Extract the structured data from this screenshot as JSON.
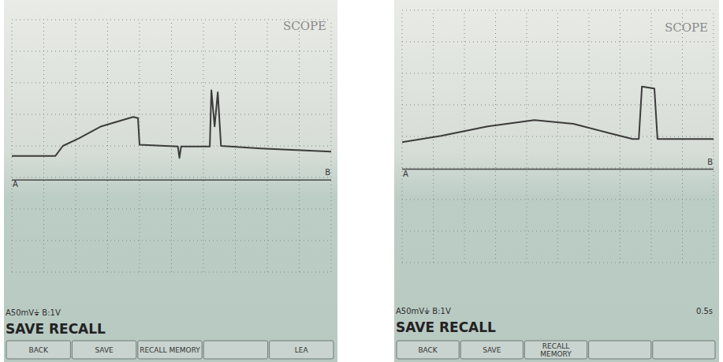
{
  "chart_data": [
    {
      "type": "line",
      "title": "SCOPE",
      "x": [
        0,
        1.36,
        1.6,
        2.1,
        2.8,
        3.8,
        3.95,
        4.0,
        5.2,
        5.25,
        5.3,
        6.2,
        6.25,
        6.35,
        6.45,
        6.55,
        7.8,
        10
      ],
      "series": [
        {
          "name": "A",
          "color": "#3b3b3b",
          "values": [
            34,
            34,
            50,
            62,
            81,
            96,
            94,
            52,
            49,
            31,
            49,
            49,
            138,
            81,
            135,
            50,
            46,
            41
          ]
        },
        {
          "name": "B",
          "color": "#4a4a4a",
          "values": [
            -4,
            -4,
            -4,
            -4,
            -4,
            -4,
            -4,
            -4,
            -4,
            -4,
            -4,
            -4,
            -4,
            -4,
            -4,
            -4,
            -4,
            -4
          ]
        }
      ],
      "xlim": [
        0,
        10
      ],
      "xticks": [
        0,
        1,
        2,
        3,
        4,
        5,
        6,
        7,
        8,
        9,
        10
      ],
      "ylim": [
        -150,
        250
      ],
      "yticks": [
        -150,
        -100,
        -50,
        0,
        50,
        100,
        150,
        200,
        250
      ],
      "grid": true,
      "tick_labels": false,
      "status": "A50mV⏚  B:1V",
      "menu_title": "SAVE RECALL",
      "buttons": [
        "BACK",
        "SAVE",
        "RECALL MEMORY",
        null,
        "LEA"
      ]
    },
    {
      "type": "line",
      "title": "SCOPE",
      "x": [
        0,
        1.25,
        2.75,
        4.25,
        5.5,
        6.75,
        7.4,
        7.6,
        7.7,
        8.1,
        8.2,
        10
      ],
      "series": [
        {
          "name": "A",
          "color": "#3b3b3b",
          "values": [
            41,
            51,
            66,
            76,
            70,
            54,
            46,
            46,
            129,
            126,
            46,
            46
          ]
        },
        {
          "name": "B",
          "color": "#4a4a4a",
          "values": [
            -2,
            -2,
            -2,
            -2,
            -2,
            -2,
            -2,
            -2,
            -2,
            -2,
            -2,
            -2
          ]
        }
      ],
      "xlim": [
        0,
        10
      ],
      "xticks": [
        0,
        1,
        2,
        3,
        4,
        5,
        6,
        7,
        8,
        9,
        10
      ],
      "ylim": [
        -150,
        250
      ],
      "yticks": [
        -150,
        -100,
        -50,
        0,
        50,
        100,
        150,
        200,
        250
      ],
      "grid": true,
      "tick_labels": false,
      "status": "A50mV⏚  B:1V",
      "timebase": "0.5s",
      "menu_title": "SAVE RECALL",
      "buttons": [
        "BACK",
        "SAVE",
        "RECALL MEMORY",
        null
      ]
    }
  ]
}
